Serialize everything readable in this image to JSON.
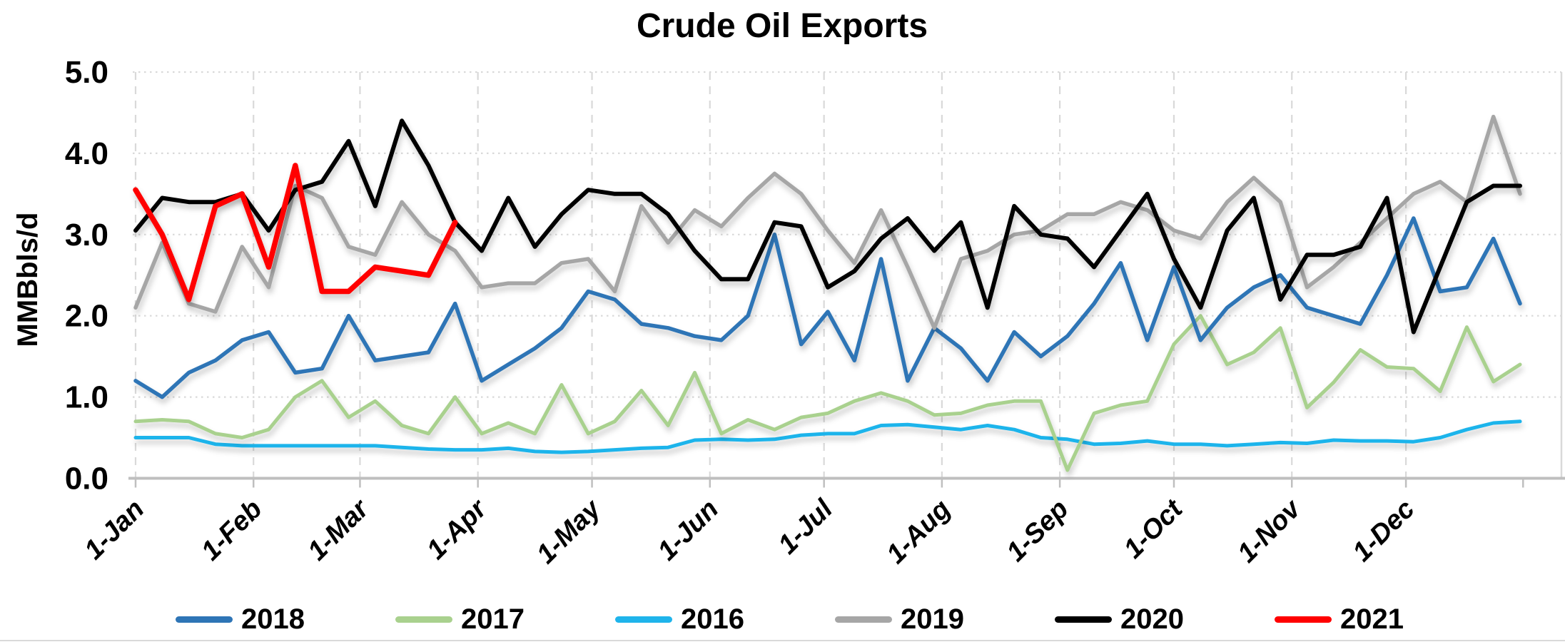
{
  "title": "Crude Oil Exports",
  "y_axis": {
    "title": "MMBbls/d",
    "tick_labels": [
      "0.0",
      "1.0",
      "2.0",
      "3.0",
      "4.0",
      "5.0"
    ],
    "min": 0,
    "max": 5
  },
  "x_axis": {
    "tick_labels": [
      "1-Jan",
      "1-Feb",
      "1-Mar",
      "1-Apr",
      "1-May",
      "1-Jun",
      "1-Jul",
      "1-Aug",
      "1-Sep",
      "1-Oct",
      "1-Nov",
      "1-Dec"
    ]
  },
  "chart_data": {
    "type": "line",
    "title": "Crude Oil Exports",
    "xlabel": "",
    "ylabel": "MMBbls/d",
    "ylim": [
      0,
      5
    ],
    "grid": true,
    "cadence": "weekly",
    "x_tick_labels": [
      "1-Jan",
      "1-Feb",
      "1-Mar",
      "1-Apr",
      "1-May",
      "1-Jun",
      "1-Jul",
      "1-Aug",
      "1-Sep",
      "1-Oct",
      "1-Nov",
      "1-Dec"
    ],
    "y_tick_labels": [
      "0.0",
      "1.0",
      "2.0",
      "3.0",
      "4.0",
      "5.0"
    ],
    "legend_position": "bottom",
    "legend_order": [
      "2018",
      "2017",
      "2016",
      "2019",
      "2020",
      "2021"
    ],
    "draw_order": [
      "2016",
      "2017",
      "2018",
      "2019",
      "2020",
      "2021"
    ],
    "series": [
      {
        "name": "2018",
        "color": "#2E75B6",
        "values": [
          1.2,
          1.0,
          1.3,
          1.45,
          1.7,
          1.8,
          1.3,
          1.35,
          2.0,
          1.45,
          1.5,
          1.55,
          2.15,
          1.2,
          1.4,
          1.6,
          1.85,
          2.3,
          2.2,
          1.9,
          1.85,
          1.75,
          1.7,
          2.0,
          3.0,
          1.65,
          2.05,
          1.45,
          2.7,
          1.2,
          1.85,
          1.6,
          1.2,
          1.8,
          1.5,
          1.75,
          2.15,
          2.65,
          1.7,
          2.6,
          1.7,
          2.1,
          2.35,
          2.5,
          2.1,
          2.0,
          1.9,
          2.5,
          3.2,
          2.3,
          2.35,
          2.95,
          2.15
        ]
      },
      {
        "name": "2017",
        "color": "#A9D18E",
        "values": [
          0.7,
          0.72,
          0.7,
          0.55,
          0.5,
          0.6,
          1.0,
          1.2,
          0.75,
          0.95,
          0.65,
          0.55,
          1.0,
          0.55,
          0.68,
          0.55,
          1.15,
          0.55,
          0.7,
          1.08,
          0.65,
          1.3,
          0.55,
          0.72,
          0.6,
          0.75,
          0.8,
          0.95,
          1.05,
          0.95,
          0.78,
          0.8,
          0.9,
          0.95,
          0.95,
          0.1,
          0.8,
          0.9,
          0.95,
          1.65,
          2.0,
          1.4,
          1.55,
          1.85,
          0.87,
          1.18,
          1.58,
          1.37,
          1.35,
          1.07,
          1.86,
          1.19,
          1.4
        ]
      },
      {
        "name": "2016",
        "color": "#1FB4EB",
        "values": [
          0.5,
          0.5,
          0.5,
          0.42,
          0.4,
          0.4,
          0.4,
          0.4,
          0.4,
          0.4,
          0.38,
          0.36,
          0.35,
          0.35,
          0.37,
          0.33,
          0.32,
          0.33,
          0.35,
          0.37,
          0.38,
          0.47,
          0.48,
          0.47,
          0.48,
          0.53,
          0.55,
          0.55,
          0.65,
          0.66,
          0.63,
          0.6,
          0.65,
          0.6,
          0.5,
          0.48,
          0.42,
          0.43,
          0.46,
          0.42,
          0.42,
          0.4,
          0.42,
          0.44,
          0.43,
          0.47,
          0.46,
          0.46,
          0.45,
          0.5,
          0.6,
          0.68,
          0.7
        ]
      },
      {
        "name": "2019",
        "color": "#A6A6A6",
        "values": [
          2.1,
          2.9,
          2.15,
          2.05,
          2.85,
          2.35,
          3.6,
          3.45,
          2.85,
          2.75,
          3.4,
          3.0,
          2.8,
          2.35,
          2.4,
          2.4,
          2.65,
          2.7,
          2.3,
          3.35,
          2.9,
          3.3,
          3.1,
          3.45,
          3.75,
          3.5,
          3.05,
          2.65,
          3.3,
          2.6,
          1.85,
          2.7,
          2.8,
          3.0,
          3.05,
          3.25,
          3.25,
          3.4,
          3.3,
          3.05,
          2.95,
          3.4,
          3.7,
          3.4,
          2.35,
          2.6,
          2.9,
          3.2,
          3.5,
          3.65,
          3.4,
          4.45,
          3.5
        ]
      },
      {
        "name": "2020",
        "color": "#000000",
        "values": [
          3.05,
          3.45,
          3.4,
          3.4,
          3.5,
          3.05,
          3.55,
          3.65,
          4.15,
          3.35,
          4.4,
          3.85,
          3.15,
          2.8,
          3.45,
          2.85,
          3.25,
          3.55,
          3.5,
          3.5,
          3.25,
          2.8,
          2.45,
          2.45,
          3.15,
          3.1,
          2.35,
          2.55,
          2.95,
          3.2,
          2.8,
          3.15,
          2.1,
          3.35,
          3.0,
          2.95,
          2.6,
          3.05,
          3.5,
          2.7,
          2.1,
          3.05,
          3.45,
          2.2,
          2.75,
          2.75,
          2.85,
          3.45,
          1.8,
          2.6,
          3.4,
          3.6,
          3.6
        ]
      },
      {
        "name": "2021",
        "color": "#FF0000",
        "values": [
          3.55,
          3.0,
          2.2,
          3.35,
          3.5,
          2.6,
          3.85,
          2.3,
          2.3,
          2.6,
          2.55,
          2.5,
          3.15
        ]
      }
    ]
  }
}
